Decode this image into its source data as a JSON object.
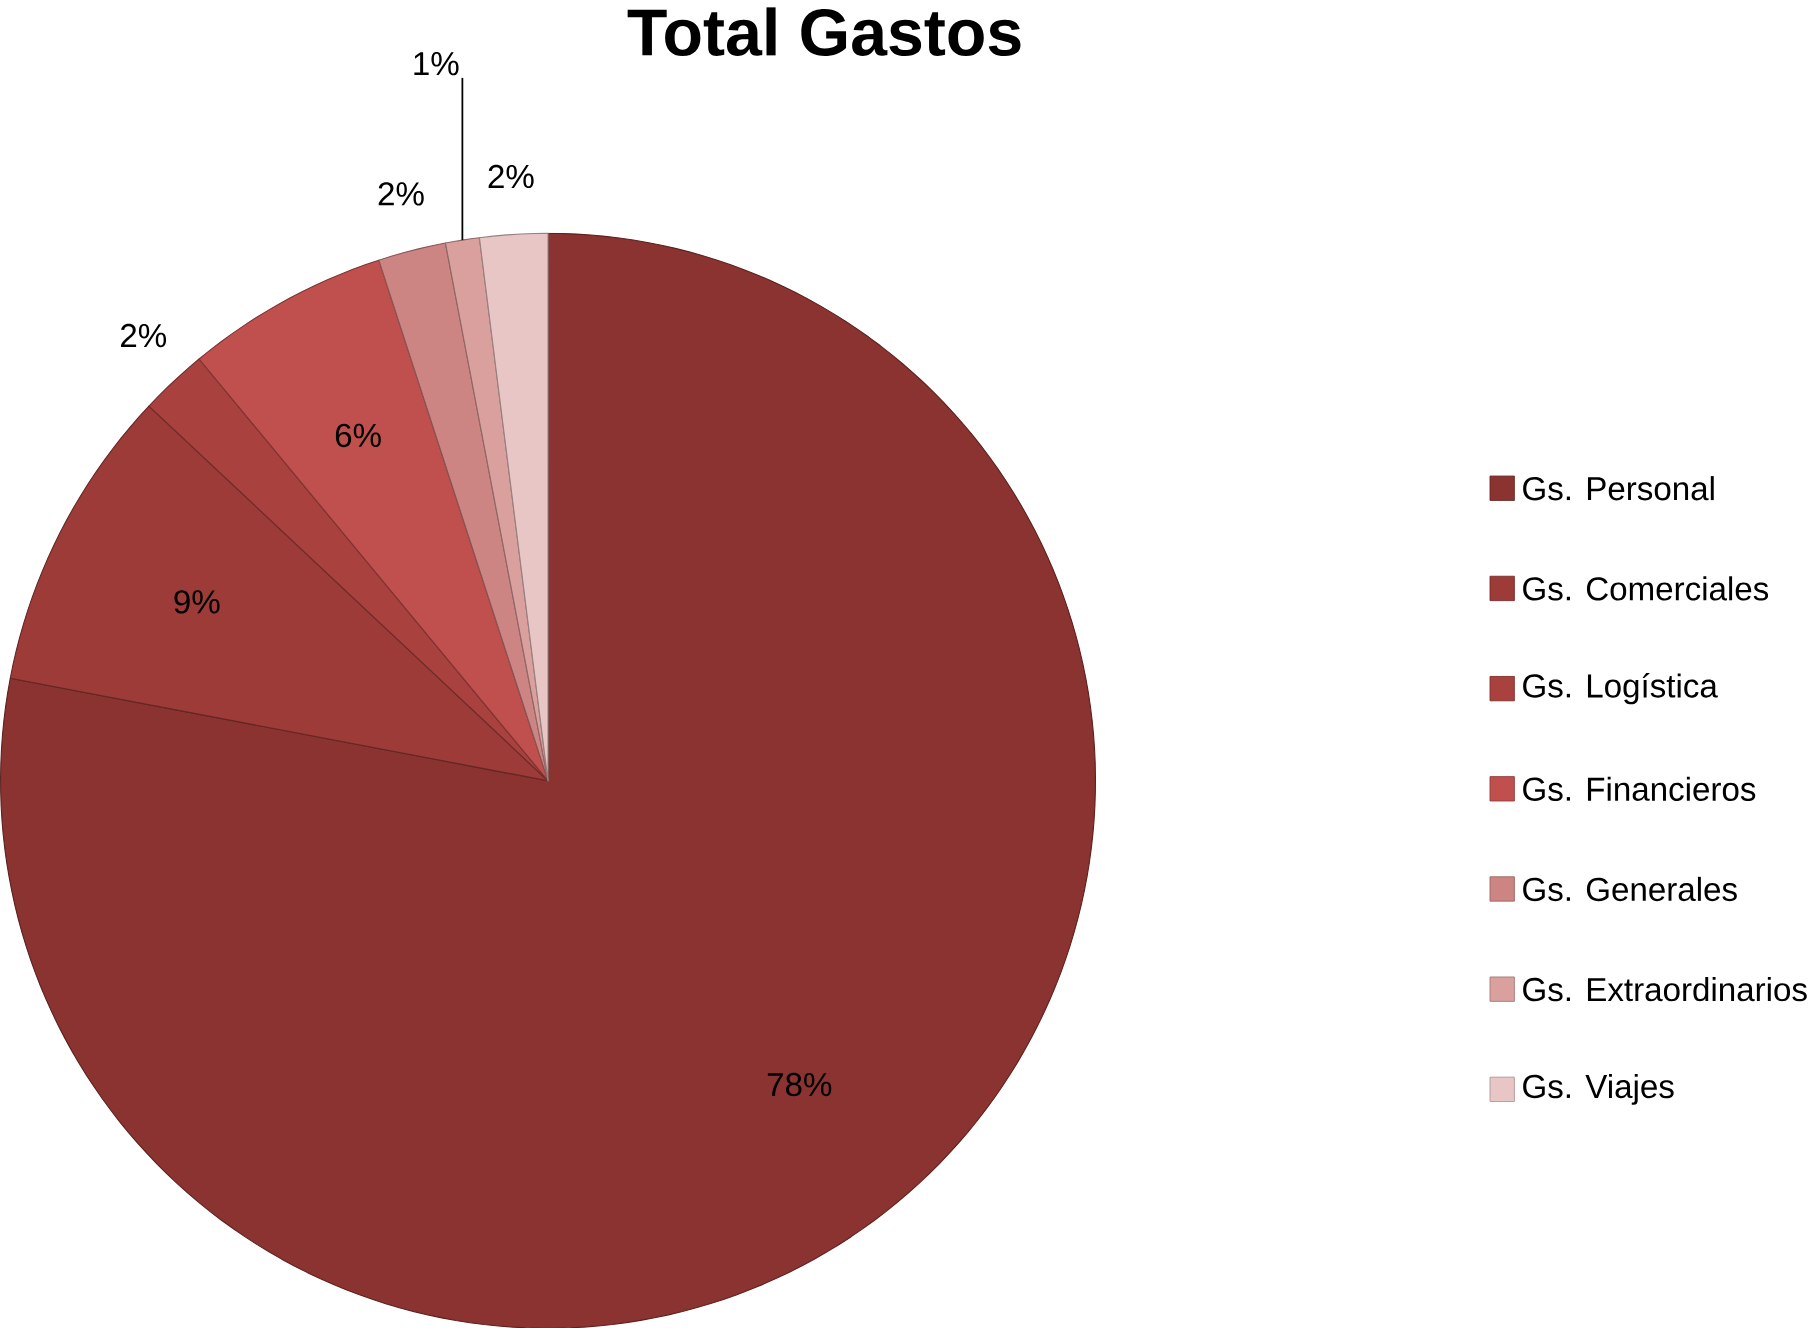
{
  "chart_data": {
    "type": "pie",
    "title": "Total Gastos",
    "categories": [
      "Gs. Personal",
      "Gs. Comerciales",
      "Gs. Logística",
      "Gs. Financieros",
      "Gs. Generales",
      "Gs. Extraordinarios",
      "Gs. Viajes"
    ],
    "values": [
      78,
      9,
      2,
      6,
      2,
      1,
      2
    ],
    "value_labels": [
      "78%",
      "9%",
      "2%",
      "6%",
      "2%",
      "1%",
      "2%"
    ],
    "colors": [
      "#8b3330",
      "#9c3b38",
      "#a9423f",
      "#c0504d",
      "#cd8583",
      "#d9a09e",
      "#e8c6c5"
    ],
    "legend": "right"
  }
}
